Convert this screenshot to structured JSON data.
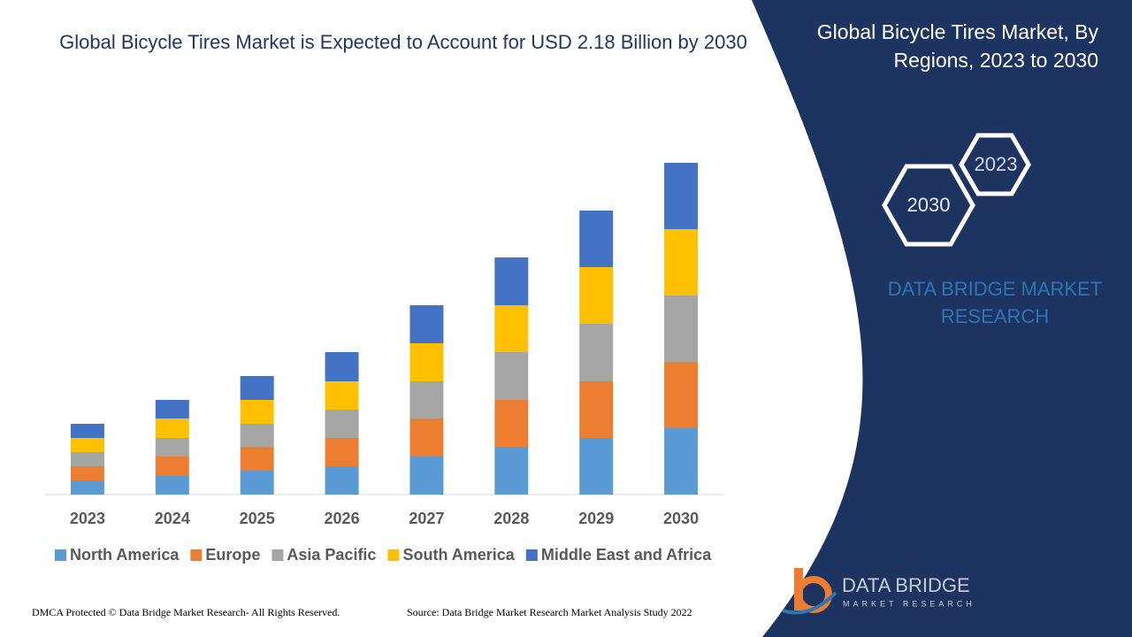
{
  "chart_data": {
    "type": "stacked_bar",
    "title": "Global Bicycle Tires Market is Expected to Account for USD 2.18 Billion by 2030",
    "categories": [
      "2023",
      "2024",
      "2025",
      "2026",
      "2027",
      "2028",
      "2029",
      "2030"
    ],
    "series": [
      {
        "name": "North America",
        "color": "#5b9bd5",
        "values": [
          16,
          21,
          27,
          32,
          43,
          54,
          64,
          75
        ]
      },
      {
        "name": "Europe",
        "color": "#ed7d31",
        "values": [
          16,
          22,
          27,
          32,
          43,
          53,
          64,
          75
        ]
      },
      {
        "name": "Asia Pacific",
        "color": "#a5a5a5",
        "values": [
          16,
          21,
          26,
          32,
          42,
          54,
          65,
          75
        ]
      },
      {
        "name": "South America",
        "color": "#ffc000",
        "values": [
          16,
          22,
          27,
          32,
          43,
          53,
          64,
          75
        ]
      },
      {
        "name": "Middle East and Africa",
        "color": "#4472c4",
        "values": [
          16,
          21,
          27,
          33,
          43,
          54,
          64,
          75
        ]
      }
    ],
    "ylim": [
      0,
      400
    ],
    "legend": "bottom"
  },
  "panel": {
    "title": "Global Bicycle Tires Market, By Regions, 2023 to 2030",
    "hex_small": "2023",
    "hex_large": "2030",
    "brand": "DATA BRIDGE MARKET RESEARCH"
  },
  "logo": {
    "name": "DATA BRIDGE",
    "tagline": "MARKET RESEARCH"
  },
  "footer": {
    "left": "DMCA Protected © Data Bridge Market Research- All Rights Reserved.",
    "right": "Source: Data Bridge Market Research Market Analysis Study 2022"
  }
}
